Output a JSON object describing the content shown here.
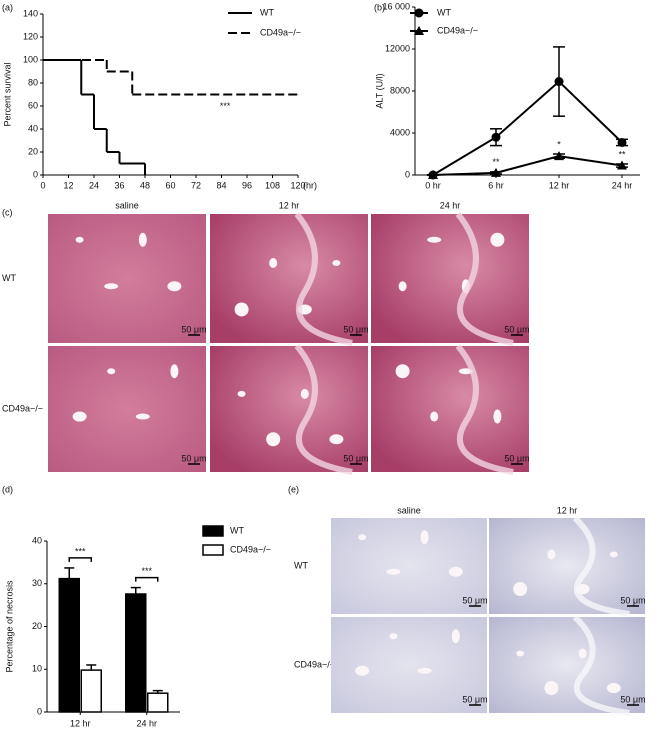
{
  "chart_data": [
    {
      "type": "step",
      "panel_label": "(a)",
      "y_label": "Percent survival",
      "x_unit_label": "(hr)",
      "xlim": [
        0,
        120
      ],
      "xticks": [
        0,
        12,
        24,
        36,
        48,
        60,
        72,
        84,
        96,
        108,
        120
      ],
      "ylim": [
        0,
        140
      ],
      "yticks": [
        0,
        20,
        40,
        60,
        80,
        100,
        120,
        140
      ],
      "legend": "upper right",
      "annotation": "***",
      "series": [
        {
          "name": "WT",
          "color": "#000000",
          "line_style": "solid",
          "x": [
            0,
            18,
            24,
            30,
            36,
            48
          ],
          "values": [
            100,
            70,
            40,
            20,
            10,
            0
          ]
        },
        {
          "name": "CD49a−/−",
          "color": "#000000",
          "line_style": "dashed",
          "x": [
            0,
            30,
            42,
            120
          ],
          "values": [
            100,
            90,
            70,
            70
          ]
        }
      ]
    },
    {
      "type": "line",
      "panel_label": "(b)",
      "y_label": "ALT (U/l)",
      "categories": [
        "0 hr",
        "6 hr",
        "12 hr",
        "24 hr"
      ],
      "ylim": [
        0,
        16000
      ],
      "yticks": [
        0,
        4000,
        8000,
        12000,
        {
          "value": 16000,
          "label": "16 000"
        }
      ],
      "legend": "upper left",
      "series": [
        {
          "name": "WT",
          "color": "#000000",
          "marker": "circle",
          "values": [
            0,
            3600,
            8900,
            3100
          ],
          "errors": [
            0,
            800,
            3300,
            300
          ]
        },
        {
          "name": "CD49a−/−",
          "color": "#000000",
          "marker": "triangle",
          "values": [
            0,
            200,
            1800,
            900
          ],
          "errors": [
            0,
            100,
            200,
            150
          ],
          "value_annotations": [
            null,
            "**",
            "*",
            "**"
          ]
        }
      ]
    },
    {
      "type": "bar",
      "panel_label": "(d)",
      "y_label": "Percentage of necrosis",
      "categories": [
        "12 hr",
        "24 hr"
      ],
      "ylim": [
        0,
        40
      ],
      "yticks": [
        0,
        10,
        20,
        30,
        40
      ],
      "legend": "right",
      "significance": [
        "***",
        "***"
      ],
      "series": [
        {
          "name": "WT",
          "color": "#000000",
          "values": [
            31.2,
            27.6
          ],
          "errors": [
            2.5,
            1.5
          ]
        },
        {
          "name": "CD49a−/−",
          "color": "#ffffff",
          "values": [
            9.8,
            4.4
          ],
          "errors": [
            1.2,
            0.6
          ]
        }
      ]
    }
  ],
  "micrographs": [
    {
      "panel_label": "(c)",
      "stain": "H&E",
      "columns": [
        "saline",
        "12 hr",
        "24 hr"
      ],
      "rows": [
        "WT",
        "CD49a−/−"
      ],
      "scale_bar": "50 μm"
    },
    {
      "panel_label": "(e)",
      "stain": "IHC",
      "columns": [
        "saline",
        "12 hr"
      ],
      "rows": [
        "WT",
        "CD49a−/−"
      ],
      "scale_bar": "50 μm"
    }
  ]
}
